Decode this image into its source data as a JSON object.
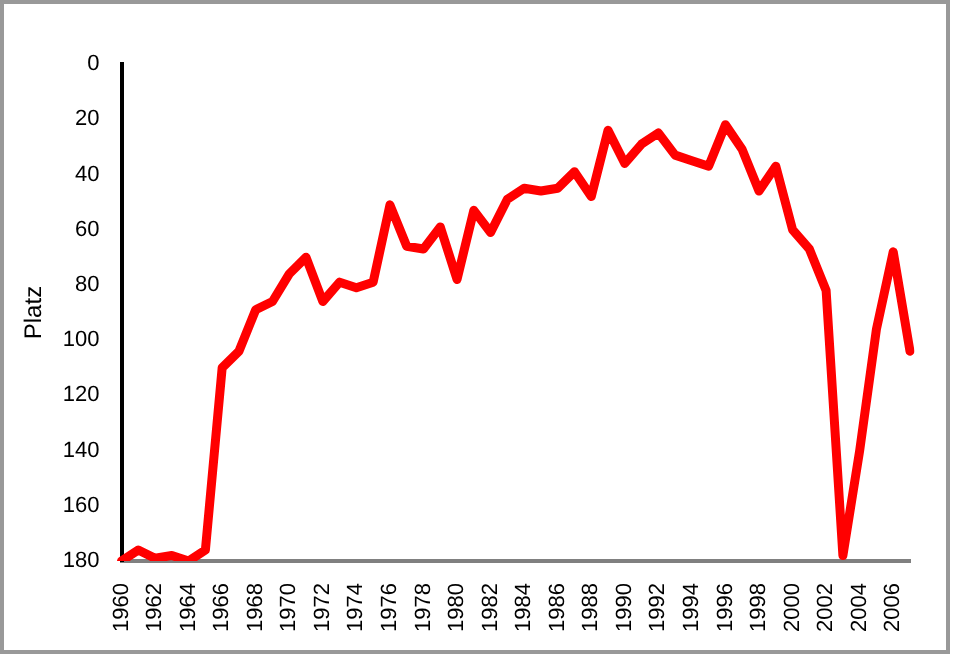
{
  "chart_data": {
    "type": "line",
    "ylabel": "Platz",
    "categories": [
      "1960",
      null,
      "1962",
      null,
      "1964",
      null,
      "1966",
      null,
      "1968",
      null,
      "1970",
      null,
      "1972",
      null,
      "1974",
      null,
      "1976",
      null,
      "1978",
      null,
      "1980",
      null,
      "1982",
      null,
      "1984",
      null,
      "1986",
      null,
      "1988",
      null,
      "1990",
      null,
      "1992",
      null,
      "1994",
      null,
      "1996",
      null,
      "1998",
      null,
      "2000",
      null,
      "2002",
      null,
      "2004",
      null,
      "2006",
      null
    ],
    "series": [
      {
        "color": "#ff0000",
        "values": [
          180,
          176,
          179,
          178,
          180,
          176,
          110,
          104,
          89,
          86,
          76,
          70,
          86,
          79,
          81,
          79,
          51,
          66,
          67,
          59,
          78,
          53,
          61,
          49,
          45,
          46,
          45,
          39,
          48,
          24,
          36,
          29,
          25,
          33,
          35,
          37,
          22,
          31,
          46,
          37,
          60,
          67,
          82,
          178,
          140,
          96,
          68,
          104
        ]
      }
    ],
    "ylim": [
      180,
      0
    ],
    "yticks": [
      0,
      20,
      40,
      60,
      80,
      100,
      120,
      140,
      160,
      180
    ],
    "grid": false,
    "legend": false,
    "marker": "none",
    "line_style": "solid"
  }
}
